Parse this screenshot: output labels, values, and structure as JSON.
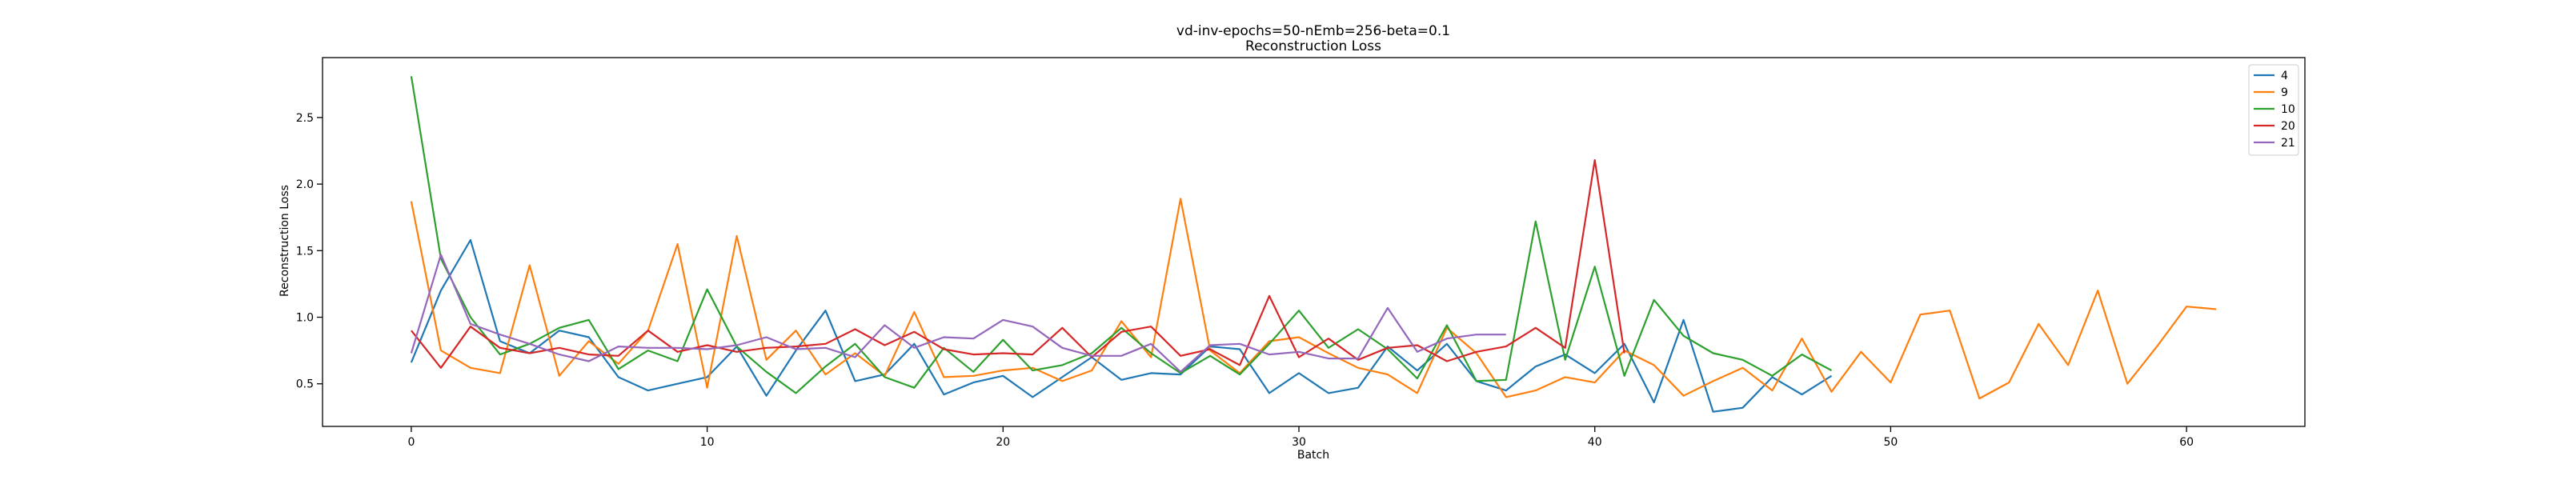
{
  "chart_data": {
    "type": "line",
    "title": "vd-inv-epochs=50-nEmb=256-beta=0.1",
    "subtitle": "Reconstruction Loss",
    "xlabel": "Batch",
    "ylabel": "Reconstruction Loss",
    "xlim": [
      -3,
      64
    ],
    "ylim": [
      0.18,
      2.95
    ],
    "x_ticks": [
      0,
      10,
      20,
      30,
      40,
      50,
      60
    ],
    "y_ticks": [
      0.5,
      1.0,
      1.5,
      2.0,
      2.5
    ],
    "grid": false,
    "legend_position": "top-right",
    "series": [
      {
        "name": "4",
        "color": "#1f77b4",
        "values": [
          0.66,
          1.2,
          1.58,
          0.82,
          0.73,
          0.9,
          0.85,
          0.55,
          0.45,
          0.5,
          0.55,
          0.78,
          0.41,
          0.75,
          1.05,
          0.52,
          0.57,
          0.8,
          0.42,
          0.51,
          0.56,
          0.4,
          0.55,
          0.7,
          0.53,
          0.58,
          0.57,
          0.78,
          0.76,
          0.43,
          0.58,
          0.43,
          0.47,
          0.78,
          0.6,
          0.8,
          0.52,
          0.45,
          0.63,
          0.72,
          0.58,
          0.8,
          0.36,
          0.98,
          0.29,
          0.32,
          0.55,
          0.42,
          0.56
        ]
      },
      {
        "name": "9",
        "color": "#ff7f0e",
        "values": [
          1.87,
          0.75,
          0.62,
          0.58,
          1.39,
          0.56,
          0.82,
          0.65,
          0.9,
          1.55,
          0.47,
          1.61,
          0.68,
          0.9,
          0.57,
          0.73,
          0.56,
          1.04,
          0.55,
          0.56,
          0.6,
          0.62,
          0.52,
          0.6,
          0.97,
          0.7,
          1.89,
          0.75,
          0.58,
          0.82,
          0.85,
          0.73,
          0.62,
          0.57,
          0.43,
          0.92,
          0.73,
          0.4,
          0.45,
          0.55,
          0.51,
          0.75,
          0.64,
          0.41,
          0.52,
          0.62,
          0.45,
          0.84,
          0.44,
          0.74,
          0.51,
          1.02,
          1.05,
          0.39,
          0.51,
          0.95,
          0.64,
          1.2,
          0.5,
          0.78,
          1.08,
          1.06
        ]
      },
      {
        "name": "10",
        "color": "#2ca02c",
        "values": [
          2.81,
          1.44,
          1.0,
          0.72,
          0.8,
          0.92,
          0.98,
          0.61,
          0.75,
          0.67,
          1.21,
          0.78,
          0.59,
          0.43,
          0.63,
          0.8,
          0.55,
          0.47,
          0.77,
          0.59,
          0.83,
          0.6,
          0.64,
          0.73,
          0.92,
          0.73,
          0.58,
          0.71,
          0.57,
          0.8,
          1.05,
          0.77,
          0.91,
          0.76,
          0.54,
          0.94,
          0.52,
          0.53,
          1.72,
          0.68,
          1.38,
          0.56,
          1.13,
          0.86,
          0.73,
          0.68,
          0.56,
          0.72,
          0.6
        ]
      },
      {
        "name": "20",
        "color": "#d62728",
        "values": [
          0.9,
          0.62,
          0.93,
          0.77,
          0.73,
          0.77,
          0.72,
          0.71,
          0.9,
          0.74,
          0.79,
          0.74,
          0.77,
          0.78,
          0.8,
          0.91,
          0.79,
          0.89,
          0.76,
          0.72,
          0.73,
          0.72,
          0.92,
          0.7,
          0.89,
          0.93,
          0.71,
          0.76,
          0.64,
          1.16,
          0.7,
          0.84,
          0.68,
          0.77,
          0.79,
          0.67,
          0.74,
          0.78,
          0.92,
          0.77,
          2.18,
          0.73
        ]
      },
      {
        "name": "21",
        "color": "#9467bd",
        "values": [
          0.73,
          1.47,
          0.95,
          0.87,
          0.8,
          0.72,
          0.67,
          0.78,
          0.77,
          0.77,
          0.76,
          0.79,
          0.85,
          0.76,
          0.77,
          0.7,
          0.94,
          0.77,
          0.85,
          0.84,
          0.98,
          0.93,
          0.77,
          0.71,
          0.71,
          0.8,
          0.59,
          0.79,
          0.8,
          0.72,
          0.74,
          0.69,
          0.69,
          1.07,
          0.74,
          0.84,
          0.87,
          0.87
        ]
      }
    ]
  }
}
